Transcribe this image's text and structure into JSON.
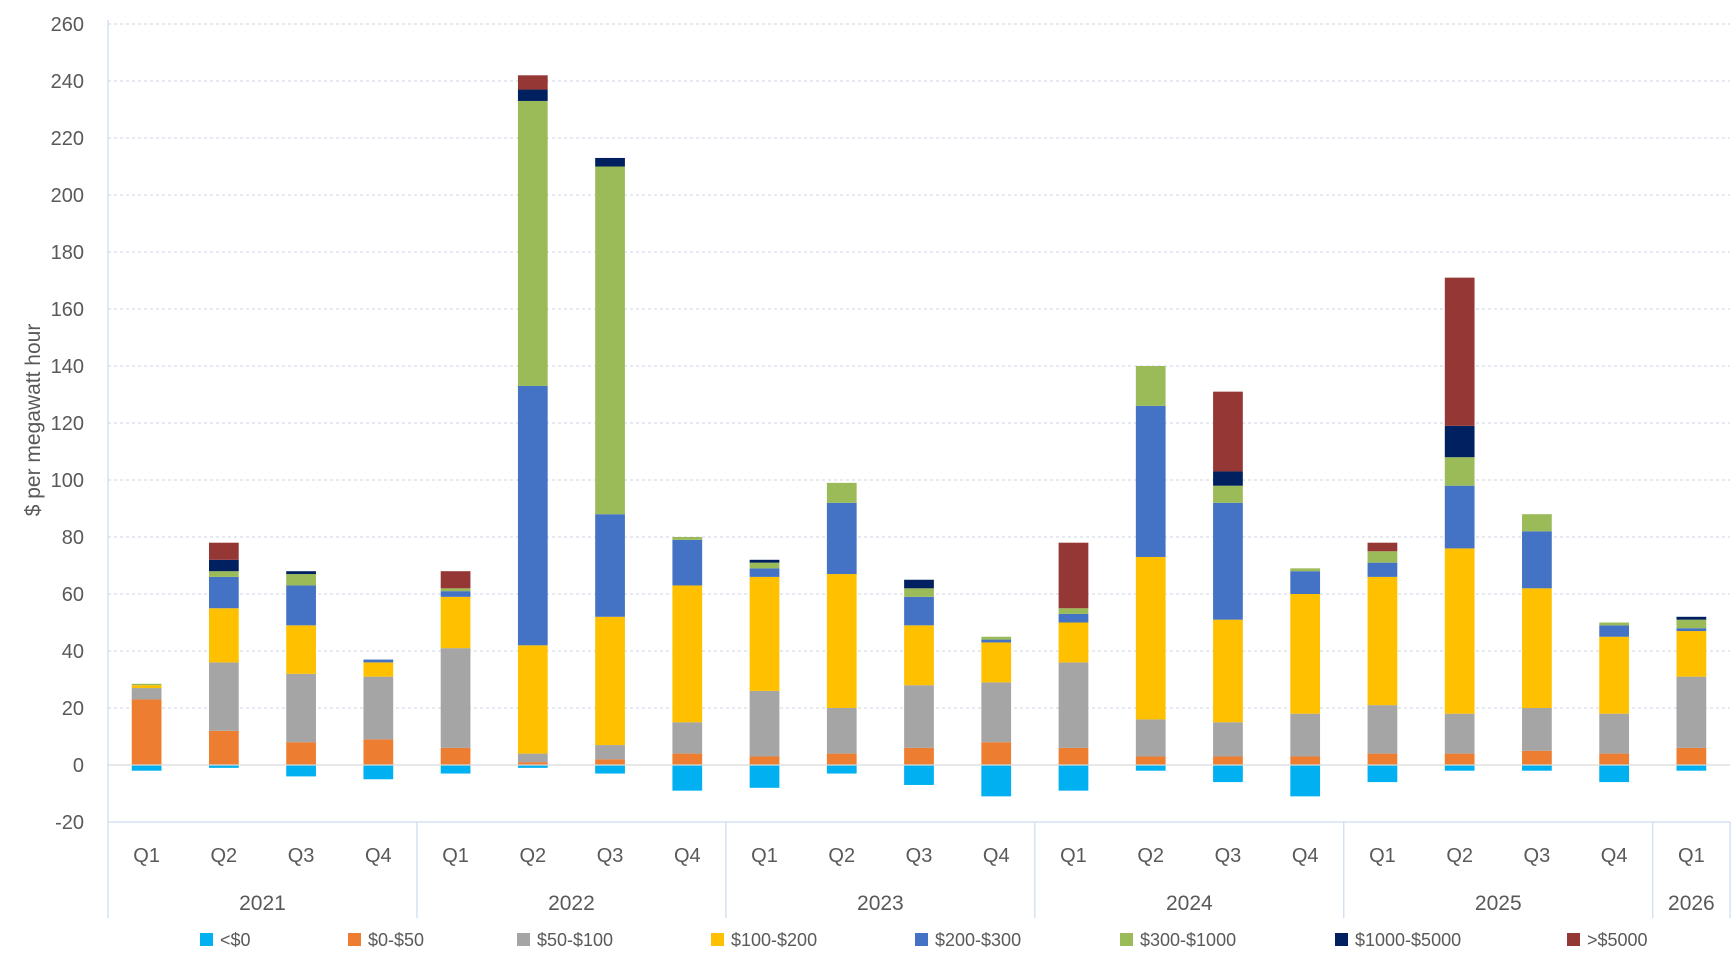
{
  "chart_data": {
    "type": "bar",
    "stacked": true,
    "title": "",
    "xlabel": "",
    "ylabel": "$ per megawatt hour",
    "ylim": [
      -20,
      260
    ],
    "yticks": [
      -20,
      0,
      20,
      40,
      60,
      80,
      100,
      120,
      140,
      160,
      180,
      200,
      220,
      240,
      260
    ],
    "grid": "horizontal dashed",
    "legend_position": "bottom",
    "categories": [
      {
        "quarter": "Q1",
        "year": "2021"
      },
      {
        "quarter": "Q2",
        "year": "2021"
      },
      {
        "quarter": "Q3",
        "year": "2021"
      },
      {
        "quarter": "Q4",
        "year": "2021"
      },
      {
        "quarter": "Q1",
        "year": "2022"
      },
      {
        "quarter": "Q2",
        "year": "2022"
      },
      {
        "quarter": "Q3",
        "year": "2022"
      },
      {
        "quarter": "Q4",
        "year": "2022"
      },
      {
        "quarter": "Q1",
        "year": "2023"
      },
      {
        "quarter": "Q2",
        "year": "2023"
      },
      {
        "quarter": "Q3",
        "year": "2023"
      },
      {
        "quarter": "Q4",
        "year": "2023"
      },
      {
        "quarter": "Q1",
        "year": "2024"
      },
      {
        "quarter": "Q2",
        "year": "2024"
      },
      {
        "quarter": "Q3",
        "year": "2024"
      },
      {
        "quarter": "Q4",
        "year": "2024"
      },
      {
        "quarter": "Q1",
        "year": "2025"
      },
      {
        "quarter": "Q2",
        "year": "2025"
      },
      {
        "quarter": "Q3",
        "year": "2025"
      },
      {
        "quarter": "Q4",
        "year": "2025"
      },
      {
        "quarter": "Q1",
        "year": "2026"
      }
    ],
    "years": [
      "2021",
      "2022",
      "2023",
      "2024",
      "2025",
      "2026"
    ],
    "series": [
      {
        "name": "<$0",
        "color": "#00B0F0",
        "values": [
          -2,
          -1,
          -4,
          -5,
          -3,
          -1,
          -3,
          -9,
          -8,
          -3,
          -7,
          -11,
          -9,
          -2,
          -6,
          -11,
          -6,
          -2,
          -2,
          -6,
          -2
        ]
      },
      {
        "name": "$0-$50",
        "color": "#ED7D31",
        "values": [
          23,
          12,
          8,
          9,
          6,
          1,
          2,
          4,
          3,
          4,
          6,
          8,
          6,
          3,
          3,
          3,
          4,
          4,
          5,
          4,
          6
        ]
      },
      {
        "name": "$50-$100",
        "color": "#A5A5A5",
        "values": [
          4,
          24,
          24,
          22,
          35,
          3,
          5,
          11,
          23,
          16,
          22,
          21,
          30,
          13,
          12,
          15,
          17,
          14,
          15,
          14,
          25
        ]
      },
      {
        "name": "$100-$200",
        "color": "#FFC000",
        "values": [
          1,
          19,
          17,
          5,
          18,
          38,
          45,
          48,
          40,
          47,
          21,
          14,
          14,
          57,
          36,
          42,
          45,
          58,
          42,
          27,
          16
        ]
      },
      {
        "name": "$200-$300",
        "color": "#4472C4",
        "values": [
          0,
          11,
          14,
          1,
          2,
          91,
          36,
          16,
          3,
          25,
          10,
          1,
          3,
          53,
          41,
          8,
          5,
          22,
          20,
          4,
          1
        ]
      },
      {
        "name": "$300-$1000",
        "color": "#9BBB59",
        "values": [
          0.5,
          2,
          4,
          0,
          1,
          100,
          122,
          1,
          2,
          7,
          3,
          1,
          2,
          14,
          6,
          1,
          4,
          10,
          6,
          1,
          3
        ]
      },
      {
        "name": "$1000-$5000",
        "color": "#002060",
        "values": [
          0,
          4,
          1,
          0,
          0,
          4,
          3,
          0,
          1,
          0,
          3,
          0,
          0,
          0,
          5,
          0,
          0,
          11,
          0,
          0,
          1
        ]
      },
      {
        "name": ">$5000",
        "color": "#953735",
        "values": [
          0,
          6,
          0,
          0,
          6,
          5,
          0,
          0,
          0,
          0,
          0,
          0,
          23,
          0,
          28,
          0,
          3,
          52,
          0,
          0,
          0
        ]
      }
    ]
  }
}
